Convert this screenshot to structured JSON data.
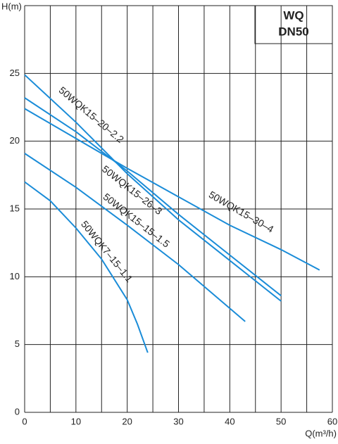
{
  "chart_data": {
    "type": "line",
    "box_title": [
      "WQ",
      "DN50"
    ],
    "y_label": "H(m)",
    "x_label": "Q(m³/h)",
    "xlim": [
      0,
      60
    ],
    "xticks": [
      0,
      10,
      20,
      30,
      40,
      50,
      60
    ],
    "x_minor_grid": [
      5,
      15,
      25,
      35,
      45,
      55
    ],
    "ylim": [
      0,
      30
    ],
    "yticks": [
      0,
      5,
      10,
      15,
      20,
      25
    ],
    "grid": true,
    "series": [
      {
        "name": "50WQK15–20–2.2",
        "color": "#1a8cd8",
        "x": [
          0,
          10,
          20,
          30,
          40,
          50
        ],
        "values": [
          24.9,
          21.4,
          17.6,
          14.2,
          11.2,
          8.2
        ]
      },
      {
        "name": "50WQK15–26–3",
        "color": "#1a8cd8",
        "x": [
          0,
          10,
          20,
          30,
          40,
          50
        ],
        "values": [
          23.2,
          20.7,
          17.8,
          14.6,
          11.6,
          8.6
        ]
      },
      {
        "name": "50WQK15–30–4",
        "color": "#1a8cd8",
        "x": [
          0,
          10,
          20,
          30,
          40,
          50,
          57.5
        ],
        "values": [
          22.4,
          20.2,
          18.0,
          15.9,
          13.8,
          12.0,
          10.5
        ]
      },
      {
        "name": "50WQK15–15–1.5",
        "color": "#1a8cd8",
        "x": [
          0,
          10,
          20,
          30,
          43
        ],
        "values": [
          19.1,
          16.6,
          13.8,
          10.9,
          6.7
        ]
      },
      {
        "name": "50WQK7–15–1.1",
        "color": "#1a8cd8",
        "x": [
          0,
          5,
          10,
          15,
          20,
          22,
          24
        ],
        "values": [
          17.0,
          15.6,
          13.6,
          11.3,
          8.3,
          6.5,
          4.4
        ]
      }
    ]
  }
}
